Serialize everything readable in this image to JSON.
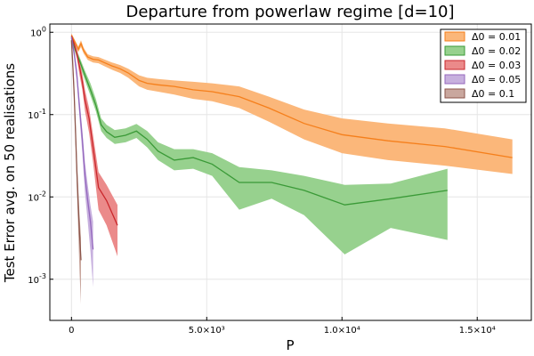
{
  "chart_data": {
    "type": "line",
    "title": "Departure from powerlaw regime [d=10]",
    "xlabel": "P",
    "ylabel": "Test Error avg. on 50 realisations",
    "xlim": [
      -800,
      17000
    ],
    "ylim_log10": [
      -3.5,
      0.1
    ],
    "y_scale": "log",
    "grid": true,
    "legend_position": "top-right",
    "x_ticks": [
      {
        "value": 0,
        "label": "0"
      },
      {
        "value": 5000,
        "label": "5.0×10³"
      },
      {
        "value": 10000,
        "label": "1.0×10⁴"
      },
      {
        "value": 15000,
        "label": "1.5×10⁴"
      }
    ],
    "y_ticks": [
      {
        "value": 1,
        "base": "10",
        "exp": "0"
      },
      {
        "value": 0.1,
        "base": "10",
        "exp": "-1"
      },
      {
        "value": 0.01,
        "base": "10",
        "exp": "-2"
      },
      {
        "value": 0.001,
        "base": "10",
        "exp": "-3"
      }
    ],
    "series": [
      {
        "name": "Δ0 = 0.01",
        "color": "#f57f1b",
        "fill": "#fbb77a",
        "x": [
          0,
          150,
          250,
          350,
          450,
          600,
          800,
          1000,
          1200,
          1500,
          1800,
          2100,
          2500,
          2800,
          3200,
          3800,
          4500,
          5200,
          6200,
          7300,
          8600,
          10000,
          11700,
          13800,
          16300
        ],
        "y": [
          0.92,
          0.73,
          0.62,
          0.73,
          0.6,
          0.5,
          0.47,
          0.46,
          0.43,
          0.39,
          0.36,
          0.32,
          0.26,
          0.24,
          0.23,
          0.22,
          0.2,
          0.19,
          0.165,
          0.12,
          0.078,
          0.057,
          0.048,
          0.041,
          0.03
        ],
        "lo": [
          0.88,
          0.68,
          0.57,
          0.66,
          0.55,
          0.46,
          0.43,
          0.42,
          0.39,
          0.35,
          0.32,
          0.28,
          0.22,
          0.2,
          0.19,
          0.175,
          0.155,
          0.145,
          0.12,
          0.082,
          0.05,
          0.034,
          0.028,
          0.024,
          0.019
        ],
        "hi": [
          0.97,
          0.78,
          0.67,
          0.8,
          0.65,
          0.54,
          0.51,
          0.5,
          0.47,
          0.43,
          0.4,
          0.36,
          0.3,
          0.28,
          0.27,
          0.26,
          0.25,
          0.24,
          0.22,
          0.165,
          0.115,
          0.09,
          0.078,
          0.068,
          0.05
        ]
      },
      {
        "name": "Δ0 = 0.02",
        "color": "#3a9a37",
        "fill": "#97d18e",
        "x": [
          0,
          150,
          300,
          500,
          700,
          900,
          1100,
          1300,
          1600,
          2000,
          2400,
          2800,
          3200,
          3800,
          4500,
          5200,
          6200,
          7400,
          8600,
          10100,
          11800,
          13900
        ],
        "y": [
          0.85,
          0.6,
          0.45,
          0.3,
          0.2,
          0.13,
          0.075,
          0.062,
          0.053,
          0.056,
          0.063,
          0.05,
          0.036,
          0.028,
          0.03,
          0.025,
          0.015,
          0.015,
          0.012,
          0.008,
          0.0095,
          0.012
        ],
        "lo": [
          0.8,
          0.54,
          0.4,
          0.26,
          0.17,
          0.11,
          0.063,
          0.052,
          0.044,
          0.046,
          0.052,
          0.04,
          0.028,
          0.021,
          0.022,
          0.018,
          0.007,
          0.0095,
          0.006,
          0.002,
          0.0042,
          0.003
        ],
        "hi": [
          0.9,
          0.66,
          0.5,
          0.34,
          0.24,
          0.155,
          0.09,
          0.075,
          0.065,
          0.068,
          0.077,
          0.063,
          0.046,
          0.038,
          0.038,
          0.034,
          0.023,
          0.021,
          0.018,
          0.014,
          0.0145,
          0.022
        ]
      },
      {
        "name": "Δ0 = 0.03",
        "color": "#c9272c",
        "fill": "#eb8a8a",
        "x": [
          0,
          100,
          200,
          300,
          400,
          500,
          650,
          800,
          1000,
          1300,
          1700
        ],
        "y": [
          0.9,
          0.72,
          0.55,
          0.38,
          0.25,
          0.15,
          0.09,
          0.04,
          0.013,
          0.009,
          0.0045
        ],
        "lo": [
          0.84,
          0.66,
          0.48,
          0.3,
          0.2,
          0.11,
          0.06,
          0.026,
          0.007,
          0.0045,
          0.0019
        ],
        "hi": [
          0.95,
          0.78,
          0.62,
          0.45,
          0.31,
          0.2,
          0.12,
          0.056,
          0.02,
          0.014,
          0.008
        ]
      },
      {
        "name": "Δ0 = 0.05",
        "color": "#9467bd",
        "fill": "#c7b0de",
        "x": [
          0,
          100,
          200,
          300,
          400,
          500,
          600,
          700,
          800
        ],
        "y": [
          0.88,
          0.55,
          0.3,
          0.12,
          0.05,
          0.018,
          0.009,
          0.005,
          0.0023
        ],
        "lo": [
          0.8,
          0.48,
          0.24,
          0.09,
          0.034,
          0.011,
          0.005,
          0.0022,
          0.0008
        ],
        "hi": [
          0.95,
          0.62,
          0.36,
          0.15,
          0.065,
          0.026,
          0.014,
          0.008,
          0.005
        ]
      },
      {
        "name": "Δ0 = 0.1",
        "color": "#8c564b",
        "fill": "#c9a79e",
        "x": [
          0,
          50,
          100,
          150,
          200,
          250,
          300,
          350
        ],
        "y": [
          0.8,
          0.4,
          0.17,
          0.06,
          0.02,
          0.008,
          0.0035,
          0.0017
        ],
        "lo": [
          0.7,
          0.32,
          0.13,
          0.043,
          0.012,
          0.004,
          0.0012,
          0.0005
        ],
        "hi": [
          0.9,
          0.48,
          0.22,
          0.08,
          0.029,
          0.013,
          0.006,
          0.0032
        ]
      }
    ]
  }
}
